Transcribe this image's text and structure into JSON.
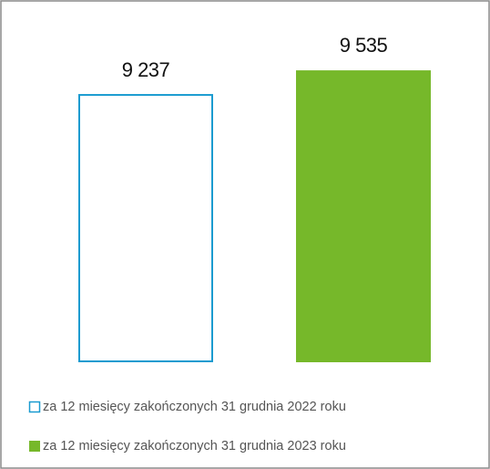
{
  "chart_data": {
    "type": "bar",
    "categories": [
      null
    ],
    "series": [
      {
        "name": "za 12 miesięcy zakończonych 31 grudnia 2022 roku",
        "color": "#1a9bd0",
        "filled": false,
        "values": [
          9237
        ],
        "value_labels": [
          "9 237"
        ]
      },
      {
        "name": "za 12 miesięcy zakończonych 31 grudnia 2023 roku",
        "color": "#76b82a",
        "filled": true,
        "values": [
          9535
        ],
        "value_labels": [
          "9 535"
        ]
      }
    ],
    "ylim": [
      6000,
      10000
    ],
    "legend": "bottom"
  }
}
